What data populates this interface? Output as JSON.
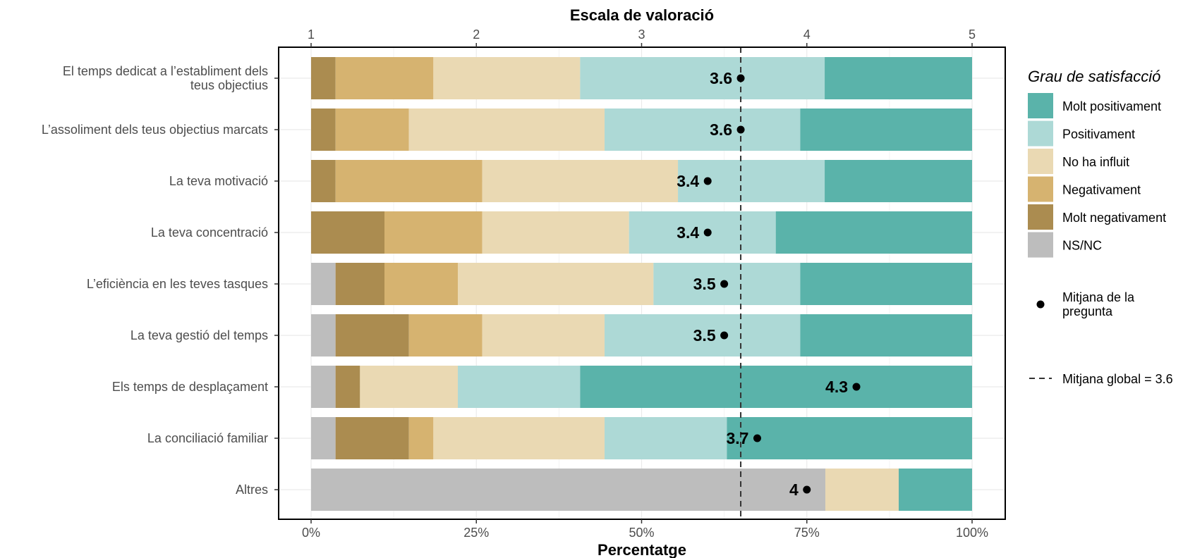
{
  "chart_data": {
    "type": "bar",
    "orientation": "horizontal",
    "stacked": true,
    "categories": [
      "El temps dedicat a l’establiment dels teus objectius",
      "L’assoliment dels teus objectius marcats",
      "La teva motivació",
      "La teva concentració",
      "L’eficiència en les teves tasques",
      "La teva gestió del temps",
      "Els temps de desplaçament",
      "La conciliació familiar",
      "Altres"
    ],
    "category_lines": [
      [
        "El temps dedicat a l’establiment dels",
        "teus objectius"
      ],
      [
        "L’assoliment dels teus objectius marcats"
      ],
      [
        "La teva motivació"
      ],
      [
        "La teva concentració"
      ],
      [
        "L’eficiència en les teves tasques"
      ],
      [
        "La teva gestió del temps"
      ],
      [
        "Els temps de desplaçament"
      ],
      [
        "La conciliació familiar"
      ],
      [
        "Altres"
      ]
    ],
    "series": [
      {
        "name": "NS/NC",
        "color": "#BDBDBD",
        "values": [
          0,
          0,
          0,
          0,
          3.7,
          3.7,
          3.7,
          3.7,
          77.8
        ]
      },
      {
        "name": "Molt negativament",
        "color": "#AB8C50",
        "values": [
          3.7,
          3.7,
          3.7,
          11.1,
          7.4,
          11.1,
          3.7,
          11.1,
          0
        ]
      },
      {
        "name": "Negativament",
        "color": "#D6B370",
        "values": [
          14.8,
          11.1,
          22.2,
          14.8,
          11.1,
          11.1,
          0,
          3.7,
          0
        ]
      },
      {
        "name": "No ha influit",
        "color": "#EAD9B3",
        "values": [
          22.2,
          29.6,
          29.6,
          22.2,
          29.6,
          18.5,
          14.8,
          25.9,
          11.1
        ]
      },
      {
        "name": "Positivament",
        "color": "#ADD9D6",
        "values": [
          37.0,
          29.6,
          22.2,
          22.2,
          22.2,
          29.6,
          18.5,
          18.5,
          0
        ]
      },
      {
        "name": "Molt positivament",
        "color": "#5AB3AA",
        "values": [
          22.3,
          26.0,
          22.3,
          29.7,
          26.0,
          26.0,
          59.3,
          37.1,
          11.1
        ]
      }
    ],
    "legend_order": [
      "Molt positivament",
      "Positivament",
      "No ha influit",
      "Negativament",
      "Molt negativament",
      "NS/NC"
    ],
    "means": [
      3.6,
      3.6,
      3.4,
      3.4,
      3.5,
      3.5,
      4.3,
      3.7,
      4
    ],
    "mean_labels": [
      "3.6",
      "3.6",
      "3.4",
      "3.4",
      "3.5",
      "3.5",
      "4.3",
      "3.7",
      "4"
    ],
    "global_mean": 3.6,
    "xlabel": "Percentatge",
    "x_ticks": [
      "0%",
      "25%",
      "50%",
      "75%",
      "100%"
    ],
    "xlim": [
      0,
      100
    ],
    "top_axis_title": "Escala de valoració",
    "top_ticks": [
      "1",
      "2",
      "3",
      "4",
      "5"
    ],
    "top_lim": [
      1,
      5
    ],
    "legend_title": "Grau de satisfacció",
    "legend_mean_label_lines": [
      "Mitjana de la",
      "pregunta"
    ],
    "legend_global_label": "Mitjana global =  3.6",
    "legend_position": "right",
    "grid": true
  }
}
